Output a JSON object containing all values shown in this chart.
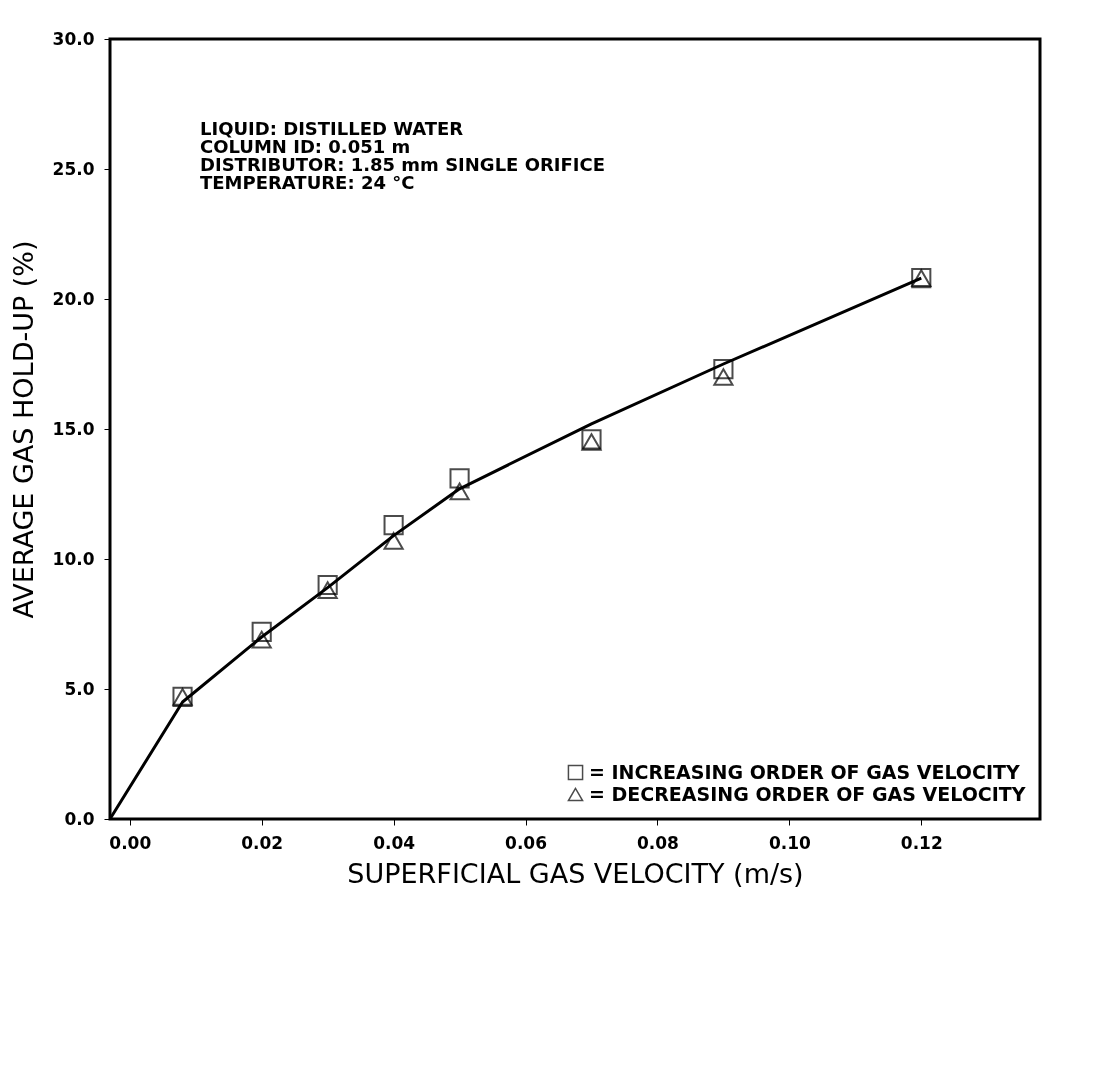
{
  "chart_data": {
    "type": "scatter",
    "xlabel": "SUPERFICIAL GAS VELOCITY (m/s)",
    "ylabel": "AVERAGE GAS HOLD-UP (%)",
    "annotations": [
      "LIQUID: DISTILLED WATER",
      "COLUMN ID: 0.051 m",
      "DISTRIBUTOR: 1.85 mm SINGLE ORIFICE",
      "TEMPERATURE: 24 °C"
    ],
    "series": [
      {
        "type": "line",
        "color": "#000000",
        "marker": "none",
        "x": [
          -0.003,
          0.008,
          0.02,
          0.03,
          0.04,
          0.05,
          0.07,
          0.09,
          0.12
        ],
        "values": [
          0.0,
          4.5,
          7.0,
          8.9,
          10.9,
          12.7,
          15.2,
          17.5,
          20.8
        ]
      },
      {
        "name": "= INCREASING ORDER OF GAS VELOCITY",
        "color": "#000000",
        "marker": "square",
        "x": [
          0.008,
          0.02,
          0.03,
          0.04,
          0.05,
          0.07,
          0.09,
          0.12
        ],
        "values": [
          4.7,
          7.2,
          9.0,
          11.3,
          13.1,
          14.6,
          17.3,
          20.8
        ]
      },
      {
        "name": "= DECREASING ORDER OF GAS VELOCITY",
        "color": "#000000",
        "marker": "triangle",
        "x": [
          0.008,
          0.02,
          0.03,
          0.04,
          0.05,
          0.07,
          0.09,
          0.12
        ],
        "values": [
          4.7,
          6.9,
          8.8,
          10.7,
          12.6,
          14.5,
          17.0,
          20.8
        ]
      }
    ],
    "xlim": [
      -0.003,
      0.138
    ],
    "ylim": [
      0,
      30
    ],
    "xticks": [
      {
        "value": 0,
        "label": "0.00"
      },
      0.02,
      0.04,
      0.06,
      0.08,
      {
        "value": 0.1,
        "label": "0.10"
      },
      0.12
    ],
    "yticks": [
      {
        "value": 0,
        "label": "0.0"
      },
      {
        "value": 5,
        "label": "5.0"
      },
      {
        "value": 10,
        "label": "10.0"
      },
      {
        "value": 15,
        "label": "15.0"
      },
      {
        "value": 20,
        "label": "20.0"
      },
      {
        "value": 25,
        "label": "25.0"
      },
      {
        "value": 30,
        "label": "30.0"
      }
    ],
    "grid": false,
    "legend": "bottom right"
  }
}
